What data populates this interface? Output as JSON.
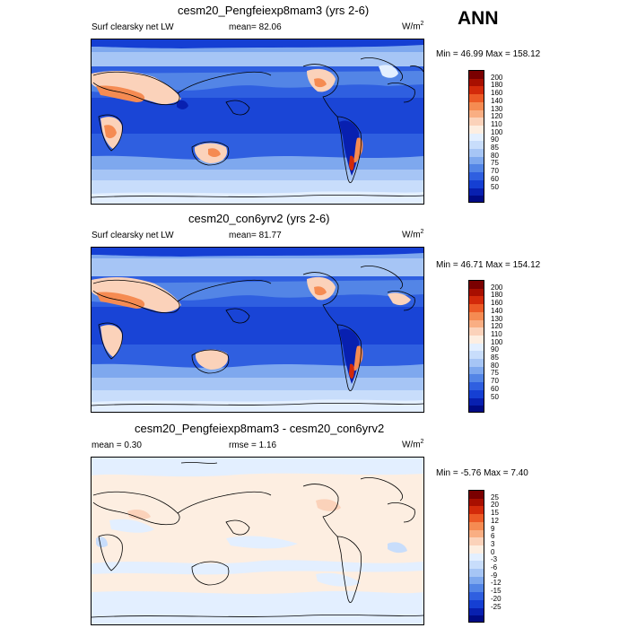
{
  "season": "ANN",
  "panels": [
    {
      "title": "cesm20_Pengfeiexp8mam3 (yrs 2-6)",
      "left_label": "Surf clearsky net LW",
      "mean_label": "mean=",
      "mean_value": "82.06",
      "units_base": "W/m",
      "units_exp": "2",
      "minmax": "Min =  46.99 Max = 158.12",
      "colorbar": {
        "labels": [
          "200",
          "180",
          "160",
          "140",
          "130",
          "120",
          "110",
          "100",
          "90",
          "85",
          "80",
          "75",
          "70",
          "60",
          "50"
        ],
        "colors": [
          "#7a0000",
          "#a80f00",
          "#d32a0a",
          "#ec5a26",
          "#f58b52",
          "#f9ae83",
          "#fbd2ba",
          "#fdeee1",
          "#e3efff",
          "#c8ddfb",
          "#a6c5f5",
          "#7ea8ee",
          "#5385e6",
          "#2f5fe0",
          "#153fd3",
          "#0820b0",
          "#000b85"
        ]
      }
    },
    {
      "title": "cesm20_con6yrv2 (yrs 2-6)",
      "left_label": "Surf clearsky net LW",
      "mean_label": "mean=",
      "mean_value": "81.77",
      "units_base": "W/m",
      "units_exp": "2",
      "minmax": "Min =  46.71 Max = 154.12",
      "colorbar": {
        "labels": [
          "200",
          "180",
          "160",
          "140",
          "130",
          "120",
          "110",
          "100",
          "90",
          "85",
          "80",
          "75",
          "70",
          "60",
          "50"
        ],
        "colors": [
          "#7a0000",
          "#a80f00",
          "#d32a0a",
          "#ec5a26",
          "#f58b52",
          "#f9ae83",
          "#fbd2ba",
          "#fdeee1",
          "#e3efff",
          "#c8ddfb",
          "#a6c5f5",
          "#7ea8ee",
          "#5385e6",
          "#2f5fe0",
          "#153fd3",
          "#0820b0",
          "#000b85"
        ]
      }
    },
    {
      "title": "cesm20_Pengfeiexp8mam3 - cesm20_con6yrv2",
      "left_label": "mean =   0.30",
      "mean_label": "rmse =",
      "mean_value": "1.16",
      "units_base": "W/m",
      "units_exp": "2",
      "minmax": "Min =  -5.76 Max =   7.40",
      "colorbar": {
        "labels": [
          "25",
          "20",
          "15",
          "12",
          "9",
          "6",
          "3",
          "0",
          "-3",
          "-6",
          "-9",
          "-12",
          "-15",
          "-20",
          "-25"
        ],
        "colors": [
          "#7a0000",
          "#a80f00",
          "#d32a0a",
          "#ec5a26",
          "#f58b52",
          "#f9ae83",
          "#fbd2ba",
          "#fdeee1",
          "#e3efff",
          "#c8ddfb",
          "#a6c5f5",
          "#7ea8ee",
          "#5385e6",
          "#2f5fe0",
          "#153fd3",
          "#0820b0",
          "#000b85"
        ]
      }
    }
  ]
}
